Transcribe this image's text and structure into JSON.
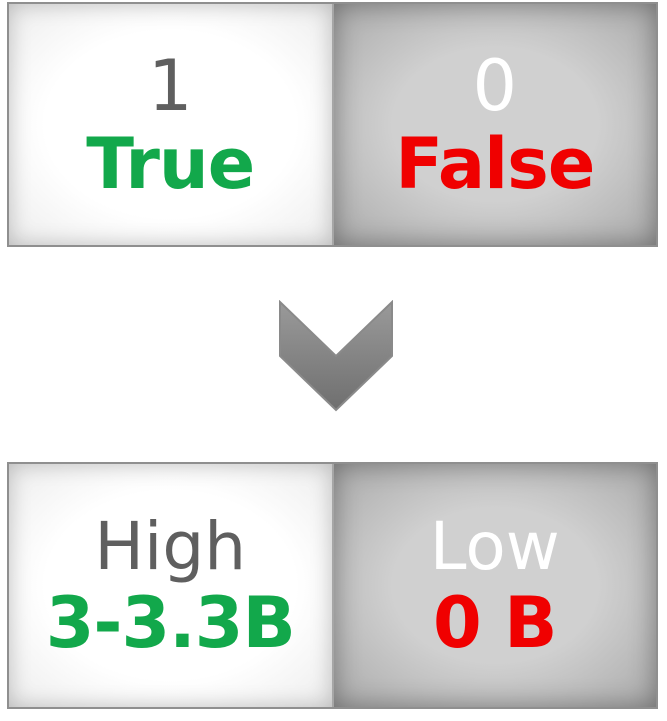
{
  "colors": {
    "true_green": "#12a84b",
    "false_red": "#f00000",
    "label_gray": "#5f5f5f",
    "label_white": "#ffffff",
    "arrow_gray": "#7a7a7a"
  },
  "top_panel": {
    "left": {
      "value": "1",
      "label": "True"
    },
    "right": {
      "value": "0",
      "label": "False"
    }
  },
  "arrow": {
    "icon": "chevron-down-icon"
  },
  "bottom_panel": {
    "left": {
      "value": "High",
      "label": "3-3.3B"
    },
    "right": {
      "value": "Low",
      "label": "0 B"
    }
  }
}
